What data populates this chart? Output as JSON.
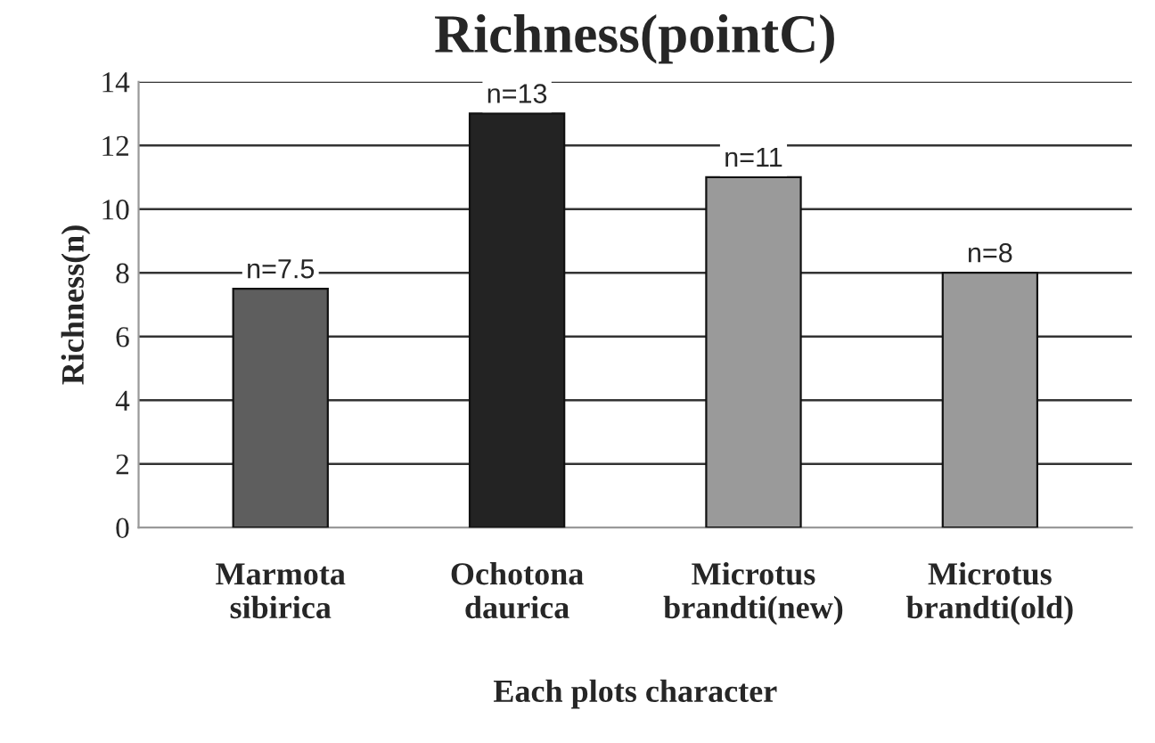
{
  "chart_data": {
    "type": "bar",
    "title": "Richness(pointC)",
    "xlabel": "Each plots character",
    "ylabel": "Richness(n)",
    "categories": [
      "Marmota\nsibirica",
      "Ochotona\ndaurica",
      "Microtus\nbrandti(new)",
      "Microtus\nbrandti(old)"
    ],
    "values": [
      7.5,
      13,
      11,
      8
    ],
    "colors": [
      "#5e5e5e",
      "#232323",
      "#9a9a9a",
      "#9a9a9a"
    ],
    "value_labels": [
      "n=7.5",
      "n=13",
      "n=11",
      "n=8"
    ],
    "ylim": [
      0,
      14
    ],
    "yticks": [
      0,
      2,
      4,
      6,
      8,
      10,
      12,
      14
    ],
    "grid": "y",
    "legend": false
  }
}
